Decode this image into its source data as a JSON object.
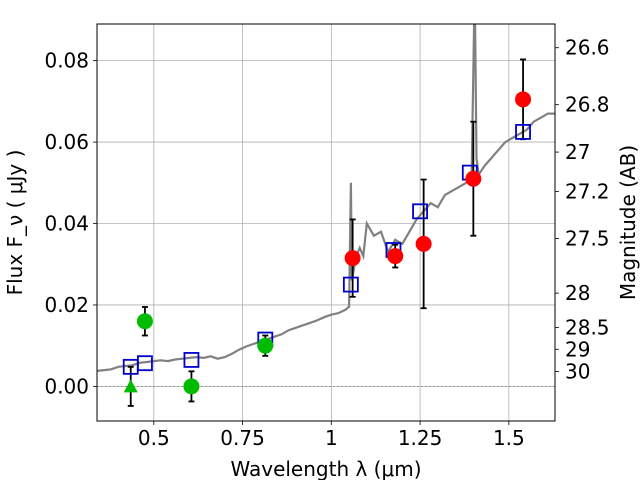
{
  "chart_data": {
    "type": "scatter",
    "xlabel": "Wavelength  λ (μm)",
    "ylabel": "Flux  F_ν  ( μJy )",
    "y2label": "Magnitude (AB)",
    "xlim": [
      0.34,
      1.63
    ],
    "ylim": [
      -0.0085,
      0.089
    ],
    "grid": true,
    "x_ticks": [
      {
        "value": 0.5,
        "label": "0.5"
      },
      {
        "value": 0.75,
        "label": "0.75"
      },
      {
        "value": 1.0,
        "label": "1"
      },
      {
        "value": 1.25,
        "label": "1.25"
      },
      {
        "value": 1.5,
        "label": "1.5"
      }
    ],
    "y_ticks": [
      {
        "value": 0.0,
        "label": "0.00"
      },
      {
        "value": 0.02,
        "label": "0.02"
      },
      {
        "value": 0.04,
        "label": "0.04"
      },
      {
        "value": 0.06,
        "label": "0.06"
      },
      {
        "value": 0.08,
        "label": "0.08"
      }
    ],
    "y2_ticks": [
      {
        "value": 26.6,
        "label": "26.6"
      },
      {
        "value": 26.8,
        "label": "26.8"
      },
      {
        "value": 27.0,
        "label": "27"
      },
      {
        "value": 27.2,
        "label": "27.2"
      },
      {
        "value": 27.5,
        "label": "27.5"
      },
      {
        "value": 28.0,
        "label": "28"
      },
      {
        "value": 28.5,
        "label": "28.5"
      },
      {
        "value": 29.0,
        "label": "29"
      },
      {
        "value": 30.0,
        "label": "30"
      }
    ],
    "model_spectrum": {
      "color": "#808080",
      "x": [
        0.34,
        0.36,
        0.38,
        0.4,
        0.42,
        0.44,
        0.46,
        0.48,
        0.5,
        0.52,
        0.54,
        0.56,
        0.58,
        0.6,
        0.62,
        0.64,
        0.66,
        0.68,
        0.7,
        0.72,
        0.74,
        0.76,
        0.78,
        0.8,
        0.82,
        0.84,
        0.86,
        0.88,
        0.9,
        0.92,
        0.94,
        0.96,
        0.98,
        1.0,
        1.02,
        1.04,
        1.05,
        1.055,
        1.058,
        1.062,
        1.07,
        1.08,
        1.09,
        1.1,
        1.12,
        1.14,
        1.16,
        1.18,
        1.2,
        1.22,
        1.24,
        1.26,
        1.28,
        1.3,
        1.32,
        1.34,
        1.36,
        1.38,
        1.395,
        1.402,
        1.405,
        1.409,
        1.415,
        1.43,
        1.45,
        1.47,
        1.49,
        1.51,
        1.53,
        1.55,
        1.57,
        1.59,
        1.61,
        1.63
      ],
      "y": [
        0.0038,
        0.004,
        0.0042,
        0.0048,
        0.005,
        0.0052,
        0.0058,
        0.006,
        0.0062,
        0.0064,
        0.0062,
        0.0066,
        0.0068,
        0.007,
        0.0072,
        0.007,
        0.0074,
        0.0068,
        0.0072,
        0.008,
        0.009,
        0.0098,
        0.0104,
        0.011,
        0.0116,
        0.0122,
        0.0128,
        0.0138,
        0.0144,
        0.015,
        0.0156,
        0.0162,
        0.017,
        0.0176,
        0.018,
        0.0188,
        0.0196,
        0.05,
        0.026,
        0.028,
        0.032,
        0.034,
        0.032,
        0.04,
        0.037,
        0.038,
        0.033,
        0.036,
        0.035,
        0.038,
        0.041,
        0.043,
        0.045,
        0.044,
        0.047,
        0.048,
        0.049,
        0.05,
        0.051,
        0.089,
        0.089,
        0.056,
        0.052,
        0.054,
        0.056,
        0.058,
        0.06,
        0.061,
        0.062,
        0.063,
        0.065,
        0.066,
        0.067,
        0.067
      ]
    },
    "model_photometry": {
      "marker": "open-square",
      "color": "#0000cc",
      "x": [
        0.435,
        0.475,
        0.606,
        0.814,
        1.055,
        1.175,
        1.25,
        1.39,
        1.54
      ],
      "y": [
        0.0048,
        0.0057,
        0.0065,
        0.0115,
        0.025,
        0.0335,
        0.043,
        0.0525,
        0.0625
      ]
    },
    "observed_detections": {
      "marker": "filled-circle",
      "color": "#ff0000",
      "x": [
        1.06,
        1.18,
        1.26,
        1.4,
        1.54
      ],
      "y": [
        0.0315,
        0.032,
        0.035,
        0.051,
        0.0705
      ],
      "yerr": [
        0.0095,
        0.0028,
        0.0158,
        0.014,
        0.0098
      ]
    },
    "observed_low_sn": {
      "marker": "filled-circle",
      "color": "#00bb00",
      "x": [
        0.475,
        0.606,
        0.814
      ],
      "y": [
        0.016,
        0.0,
        0.01
      ],
      "yerr": [
        0.0035,
        0.0037,
        0.0025
      ]
    },
    "upper_limit": {
      "marker": "filled-triangle",
      "color": "#00bb00",
      "x": [
        0.435
      ],
      "y": [
        0.0
      ],
      "yerr": [
        0.0048
      ]
    }
  }
}
